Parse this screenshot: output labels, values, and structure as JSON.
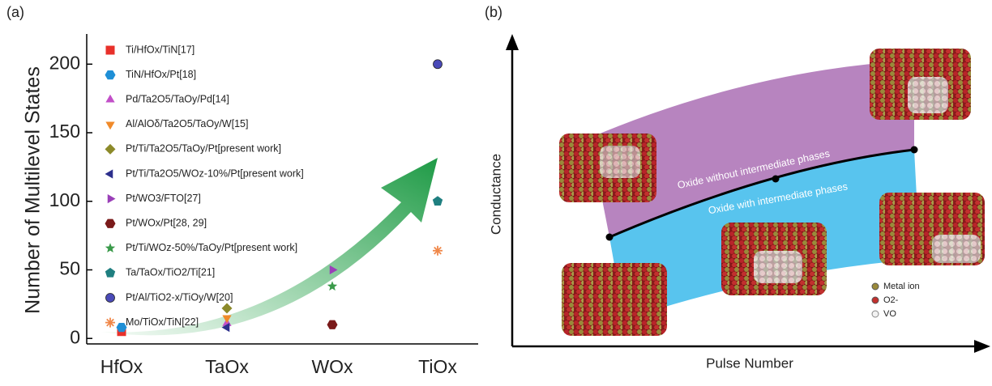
{
  "chart_data": {
    "type": "scatter",
    "panel_label": "(a)",
    "y_label": "Number of Multilevel States",
    "categories": [
      "HfOx",
      "TaOx",
      "WOx",
      "TiOx"
    ],
    "ylim": [
      -4,
      222
    ],
    "yticks": [
      0,
      50,
      100,
      150,
      200
    ],
    "series": [
      {
        "name": "Ti/HfOx/TiN[17]",
        "color": "#e8302a",
        "marker": "square",
        "values": [
          5,
          null,
          null,
          null
        ]
      },
      {
        "name": "TiN/HfOx/Pt[18]",
        "color": "#1f8fd6",
        "marker": "hexagon",
        "values": [
          8,
          null,
          null,
          null
        ]
      },
      {
        "name": "Pd/Ta2O5/TaOy/Pd[14]",
        "color": "#c24fc8",
        "marker": "triangle-up",
        "values": [
          null,
          11,
          null,
          null
        ]
      },
      {
        "name": "Al/AlOδ/Ta2O5/TaOy/W[15]",
        "color": "#f08a2a",
        "marker": "triangle-down",
        "values": [
          null,
          15,
          null,
          null
        ]
      },
      {
        "name": "Pt/Ti/Ta2O5/TaOy/Pt[present work]",
        "color": "#8c8a2a",
        "marker": "diamond",
        "values": [
          null,
          22,
          null,
          null
        ]
      },
      {
        "name": "Pt/Ti/Ta2O5/WOz-10%/Pt[present work]",
        "color": "#2c2f8c",
        "marker": "triangle-left",
        "values": [
          null,
          8,
          null,
          null
        ]
      },
      {
        "name": "Pt/WO3/FTO[27]",
        "color": "#9a3fb8",
        "marker": "triangle-right",
        "values": [
          null,
          null,
          50,
          null
        ]
      },
      {
        "name": "Pt/WOx/Pt[28, 29]",
        "color": "#7a1a1a",
        "marker": "hexagon",
        "values": [
          null,
          null,
          10,
          null
        ]
      },
      {
        "name": "Pt/Ti/WOz-50%/TaOy/Pt[present work]",
        "color": "#3a9a4a",
        "marker": "star",
        "values": [
          null,
          null,
          38,
          null
        ]
      },
      {
        "name": "Ta/TaOx/TiO2/Ti[21]",
        "color": "#1f7f80",
        "marker": "pentagon",
        "values": [
          null,
          null,
          null,
          100
        ]
      },
      {
        "name": "Pt/Al/TiO2-x/TiOy/W[20]",
        "color": "#4a4ab8",
        "marker": "circle",
        "values": [
          null,
          null,
          null,
          200
        ]
      },
      {
        "name": "Mo/TiOx/TiN[22]",
        "color": "#f0884a",
        "marker": "asterisk",
        "values": [
          null,
          null,
          null,
          64
        ]
      }
    ]
  },
  "diagram": {
    "panel_label": "(b)",
    "y_axis_label": "Conductance",
    "x_axis_label": "Pulse Number",
    "upper_band_label": "Oxide without intermediate phases",
    "lower_band_label": "Oxide with intermediate phases",
    "legend": [
      "Metal ion",
      "O2-",
      "VO"
    ]
  }
}
